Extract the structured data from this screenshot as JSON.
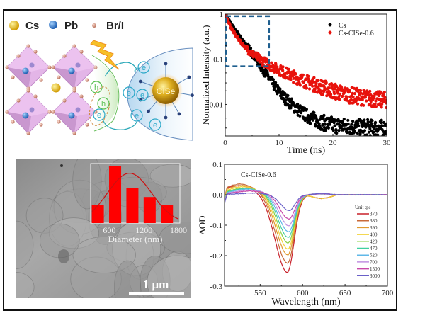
{
  "figure": {
    "schematic": {
      "legend": [
        {
          "label": "Cs",
          "color": "#e8b80c"
        },
        {
          "label": "Pb",
          "color": "#2f7fd0"
        },
        {
          "label": "Br/I",
          "color": "#d79a86"
        }
      ],
      "nanocrystal_label": "CISe",
      "electron_label": "e",
      "hole_label": "h"
    },
    "sem": {
      "scale_bar_label": "1 μm"
    }
  },
  "chart_data": [
    {
      "type": "scatter",
      "title": "",
      "xlabel": "Time (ns)",
      "ylabel": "Normalized Intensity (a.u.)",
      "xlim": [
        0,
        30
      ],
      "ylim": [
        0.002,
        1
      ],
      "yscale": "log",
      "xticks": [
        0,
        10,
        20,
        30
      ],
      "xtick_labels": [
        "0",
        "10",
        "20",
        "30"
      ],
      "yticks": [
        1,
        0.1,
        0.01
      ],
      "ytick_labels": [
        "1",
        "0.1",
        "0.01"
      ],
      "legend_position": "top-right",
      "series": [
        {
          "name": "Cs",
          "color": "#000000",
          "x": [
            0,
            1,
            2,
            3,
            4,
            5,
            6,
            7,
            8,
            9,
            10,
            11,
            12,
            13,
            14,
            15,
            16,
            17,
            18,
            19,
            20,
            22,
            24,
            26,
            28,
            30
          ],
          "y": [
            1,
            0.62,
            0.42,
            0.29,
            0.2,
            0.135,
            0.09,
            0.06,
            0.04,
            0.027,
            0.019,
            0.014,
            0.011,
            0.0085,
            0.007,
            0.0058,
            0.005,
            0.0044,
            0.004,
            0.0037,
            0.0035,
            0.0033,
            0.0032,
            0.0031,
            0.003,
            0.003
          ]
        },
        {
          "name": "Cs-CISe-0.6",
          "color": "#e8120c",
          "x": [
            0,
            1,
            2,
            3,
            4,
            5,
            6,
            7,
            8,
            9,
            10,
            12,
            14,
            16,
            18,
            20,
            22,
            24,
            26,
            28,
            30
          ],
          "y": [
            1,
            0.52,
            0.33,
            0.23,
            0.17,
            0.135,
            0.11,
            0.092,
            0.078,
            0.067,
            0.058,
            0.045,
            0.036,
            0.029,
            0.024,
            0.02,
            0.017,
            0.0155,
            0.014,
            0.013,
            0.0125
          ]
        }
      ],
      "annotation": {
        "type": "dashed-box",
        "x_range": [
          0,
          8
        ],
        "y_range": [
          0.07,
          0.9
        ],
        "color": "#1f5f8f"
      }
    },
    {
      "type": "line",
      "title": "Cs-CISe-0.6",
      "xlabel": "Wavelength (nm)",
      "ylabel": "ΔOD",
      "xlim": [
        508,
        700
      ],
      "ylim": [
        -0.3,
        0.1
      ],
      "xticks": [
        550,
        600,
        650,
        700
      ],
      "xtick_labels": [
        "550",
        "600",
        "650",
        "700"
      ],
      "yticks": [
        0.1,
        0.0,
        -0.1,
        -0.2,
        -0.3
      ],
      "ytick_labels": [
        "0.1",
        "0.0",
        "-0.1",
        "-0.2",
        "-0.3"
      ],
      "legend_title": "Unit :ps",
      "legend_position": "right",
      "series": [
        {
          "name": "370",
          "color": "#c8202a",
          "peak": -0.255,
          "pos": 0.03
        },
        {
          "name": "380",
          "color": "#c86a3a",
          "peak": -0.225,
          "pos": 0.035
        },
        {
          "name": "390",
          "color": "#e09a30",
          "peak": -0.198,
          "pos": 0.03
        },
        {
          "name": "400",
          "color": "#f2d23a",
          "peak": -0.178,
          "pos": 0.026
        },
        {
          "name": "420",
          "color": "#8ad040",
          "peak": -0.158,
          "pos": 0.022
        },
        {
          "name": "470",
          "color": "#40d0a0",
          "peak": -0.14,
          "pos": 0.02
        },
        {
          "name": "520",
          "color": "#60b8e8",
          "peak": -0.122,
          "pos": 0.018
        },
        {
          "name": "700",
          "color": "#c090e0",
          "peak": -0.102,
          "pos": 0.015
        },
        {
          "name": "1500",
          "color": "#c848a8",
          "peak": -0.08,
          "pos": 0.012
        },
        {
          "name": "3000",
          "color": "#6a60c8",
          "peak": -0.052,
          "pos": 0.005
        }
      ]
    },
    {
      "type": "bar",
      "title": "",
      "xlabel": "Diameter (nm)",
      "ylabel": "",
      "xlim": [
        300,
        1800
      ],
      "xticks": [
        600,
        1200,
        1800
      ],
      "xtick_labels": [
        "600",
        "1200",
        "1800"
      ],
      "categories": [
        "400",
        "700",
        "1000",
        "1300",
        "1600"
      ],
      "x": [
        400,
        700,
        1000,
        1300,
        1600
      ],
      "values": [
        0.32,
        1.0,
        0.62,
        0.46,
        0.32
      ],
      "fit": {
        "type": "gaussian",
        "center": 950,
        "sigma": 380,
        "amplitude": 0.88,
        "color": "#d01010"
      },
      "bar_color": "#ff0000"
    }
  ]
}
